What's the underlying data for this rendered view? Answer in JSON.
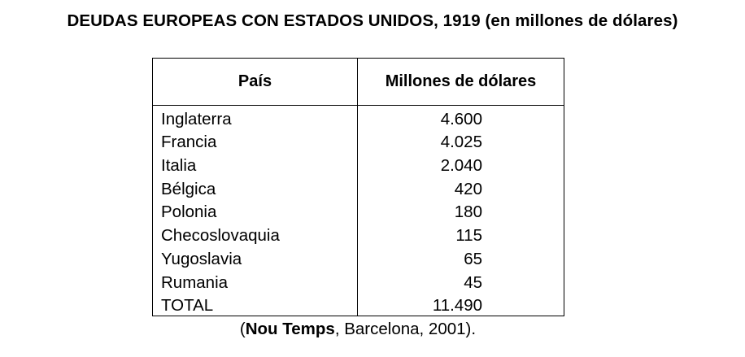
{
  "title": "DEUDAS EUROPEAS CON ESTADOS UNIDOS, 1919 (en millones de dólares)",
  "table": {
    "headers": [
      "País",
      "Millones de dólares"
    ],
    "rows": [
      {
        "country": "Inglaterra",
        "value": "4.600"
      },
      {
        "country": "Francia",
        "value": "4.025"
      },
      {
        "country": "Italia",
        "value": "2.040"
      },
      {
        "country": "Bélgica",
        "value": "420"
      },
      {
        "country": "Polonia",
        "value": "180"
      },
      {
        "country": "Checoslovaquia",
        "value": "115"
      },
      {
        "country": "Yugoslavia",
        "value": "65"
      },
      {
        "country": "Rumania",
        "value": "45"
      },
      {
        "country": "TOTAL",
        "value": "11.490"
      }
    ]
  },
  "source": {
    "open": "(",
    "publication": "Nou Temps",
    "rest": ", Barcelona, 2001)."
  },
  "chart_data": {
    "type": "table",
    "title": "DEUDAS EUROPEAS CON ESTADOS UNIDOS, 1919 (en millones de dólares)",
    "columns": [
      "País",
      "Millones de dólares"
    ],
    "rows": [
      [
        "Inglaterra",
        4600
      ],
      [
        "Francia",
        4025
      ],
      [
        "Italia",
        2040
      ],
      [
        "Bélgica",
        420
      ],
      [
        "Polonia",
        180
      ],
      [
        "Checoslovaquia",
        115
      ],
      [
        "Yugoslavia",
        65
      ],
      [
        "Rumania",
        45
      ],
      [
        "TOTAL",
        11490
      ]
    ]
  }
}
